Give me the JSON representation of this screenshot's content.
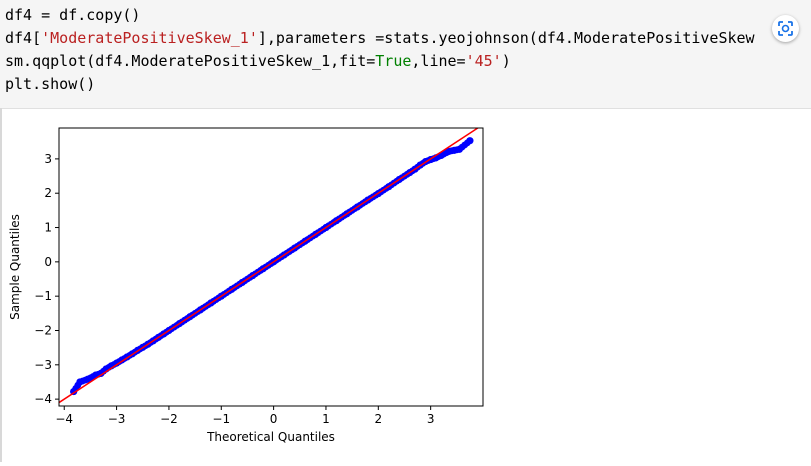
{
  "code": {
    "lines": [
      [
        {
          "t": "df4 = df.copy()",
          "c": ""
        }
      ],
      [
        {
          "t": "df4[",
          "c": ""
        },
        {
          "t": "'ModeratePositiveSkew_1'",
          "c": "str"
        },
        {
          "t": "],parameters =stats.yeojohnson(df4.ModeratePositiveSkew",
          "c": ""
        }
      ],
      [
        {
          "t": "sm.qqplot(df4.ModeratePositiveSkew_1,fit=",
          "c": ""
        },
        {
          "t": "True",
          "c": "kw"
        },
        {
          "t": ",line=",
          "c": ""
        },
        {
          "t": "'45'",
          "c": "str"
        },
        {
          "t": ")",
          "c": ""
        }
      ],
      [
        {
          "t": "plt.show()",
          "c": ""
        }
      ]
    ],
    "scan_icon": "scan-lens-icon"
  },
  "colors": {
    "points": "#0000ff",
    "line": "#ff0000",
    "code_bg": "#f5f5f5",
    "string": "#ba2121",
    "keyword": "#008000"
  },
  "chart_data": {
    "type": "scatter",
    "title": "",
    "xlabel": "Theoretical Quantiles",
    "ylabel": "Sample Quantiles",
    "xlim": [
      -4.1,
      4.0
    ],
    "ylim": [
      -4.2,
      3.9
    ],
    "xticks": [
      -4,
      -3,
      -2,
      -1,
      0,
      1,
      2,
      3
    ],
    "yticks": [
      -4,
      -3,
      -2,
      -1,
      0,
      1,
      2,
      3
    ],
    "xtick_labels": [
      "−4",
      "−3",
      "−2",
      "−1",
      "0",
      "1",
      "2",
      "3"
    ],
    "ytick_labels": [
      "−4",
      "−3",
      "−2",
      "−1",
      "0",
      "1",
      "2",
      "3"
    ],
    "reference_line": {
      "type": "45-degree",
      "from": [
        -4.1,
        -4.1
      ],
      "to": [
        4.0,
        4.0
      ]
    },
    "grid": false,
    "series": [
      {
        "points": [
          [
            -3.82,
            -3.78
          ],
          [
            -3.7,
            -3.5
          ],
          [
            -3.55,
            -3.42
          ],
          [
            -3.4,
            -3.3
          ],
          [
            -3.3,
            -3.25
          ],
          [
            -3.2,
            -3.12
          ],
          [
            -3.1,
            -3.03
          ],
          [
            -3.0,
            -2.95
          ],
          [
            -2.9,
            -2.86
          ],
          [
            -2.8,
            -2.77
          ],
          [
            -2.7,
            -2.68
          ],
          [
            -2.6,
            -2.58
          ],
          [
            -2.5,
            -2.49
          ],
          [
            -2.4,
            -2.4
          ],
          [
            -2.3,
            -2.3
          ],
          [
            -2.2,
            -2.2
          ],
          [
            -2.1,
            -2.1
          ],
          [
            -2.0,
            -2.0
          ],
          [
            -1.8,
            -1.8
          ],
          [
            -1.6,
            -1.6
          ],
          [
            -1.4,
            -1.4
          ],
          [
            -1.2,
            -1.2
          ],
          [
            -1.0,
            -1.0
          ],
          [
            -0.8,
            -0.8
          ],
          [
            -0.6,
            -0.6
          ],
          [
            -0.4,
            -0.4
          ],
          [
            -0.2,
            -0.2
          ],
          [
            0.0,
            0.0
          ],
          [
            0.2,
            0.2
          ],
          [
            0.4,
            0.4
          ],
          [
            0.6,
            0.6
          ],
          [
            0.8,
            0.8
          ],
          [
            1.0,
            1.0
          ],
          [
            1.2,
            1.2
          ],
          [
            1.4,
            1.4
          ],
          [
            1.6,
            1.6
          ],
          [
            1.8,
            1.8
          ],
          [
            2.0,
            1.99
          ],
          [
            2.2,
            2.19
          ],
          [
            2.4,
            2.4
          ],
          [
            2.6,
            2.6
          ],
          [
            2.7,
            2.7
          ],
          [
            2.8,
            2.82
          ],
          [
            2.9,
            2.92
          ],
          [
            3.0,
            2.98
          ],
          [
            3.1,
            3.03
          ],
          [
            3.2,
            3.1
          ],
          [
            3.35,
            3.22
          ],
          [
            3.45,
            3.25
          ],
          [
            3.55,
            3.28
          ],
          [
            3.75,
            3.53
          ]
        ]
      }
    ]
  }
}
